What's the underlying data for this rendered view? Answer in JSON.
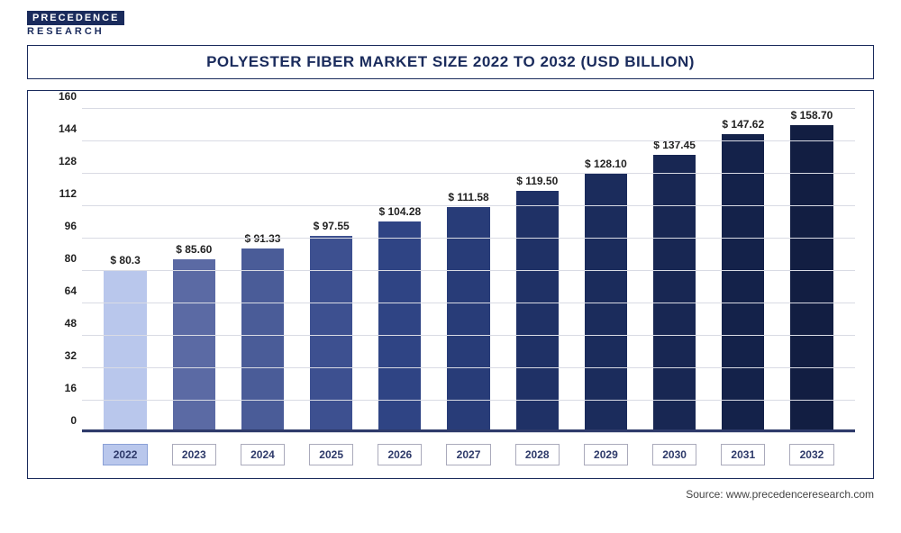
{
  "logo": {
    "top": "PRECEDENCE",
    "bottom": "RESEARCH"
  },
  "title": "POLYESTER FIBER MARKET SIZE 2022 TO 2032 (USD BILLION)",
  "source": "Source: www.precedenceresearch.com",
  "chart": {
    "type": "bar",
    "ylim": [
      0,
      160
    ],
    "ytick_step": 16,
    "yticks": [
      0,
      16,
      32,
      48,
      64,
      80,
      96,
      112,
      128,
      144,
      160
    ],
    "grid_color": "#d9dbe4",
    "baseline_color": "#2e3a6a",
    "background_color": "#ffffff",
    "title_fontsize": 17,
    "label_fontsize": 12,
    "bar_width": 0.62,
    "categories": [
      "2022",
      "2023",
      "2024",
      "2025",
      "2026",
      "2027",
      "2028",
      "2029",
      "2030",
      "2031",
      "2032"
    ],
    "values": [
      80.3,
      85.6,
      91.33,
      97.55,
      104.28,
      111.58,
      119.5,
      128.1,
      137.45,
      147.62,
      158.7
    ],
    "value_labels": [
      "$ 80.3",
      "$ 85.60",
      "$ 91.33",
      "$ 97.55",
      "$ 104.28",
      "$ 111.58",
      "$ 119.50",
      "$ 128.10",
      "$ 137.45",
      "$ 147.62",
      "$ 158.70"
    ],
    "bar_colors": [
      "#b9c7ec",
      "#5b6aa4",
      "#4a5c98",
      "#3d5090",
      "#2f4484",
      "#283c78",
      "#1f3166",
      "#1b2c5c",
      "#182753",
      "#14224a",
      "#121e42"
    ]
  }
}
